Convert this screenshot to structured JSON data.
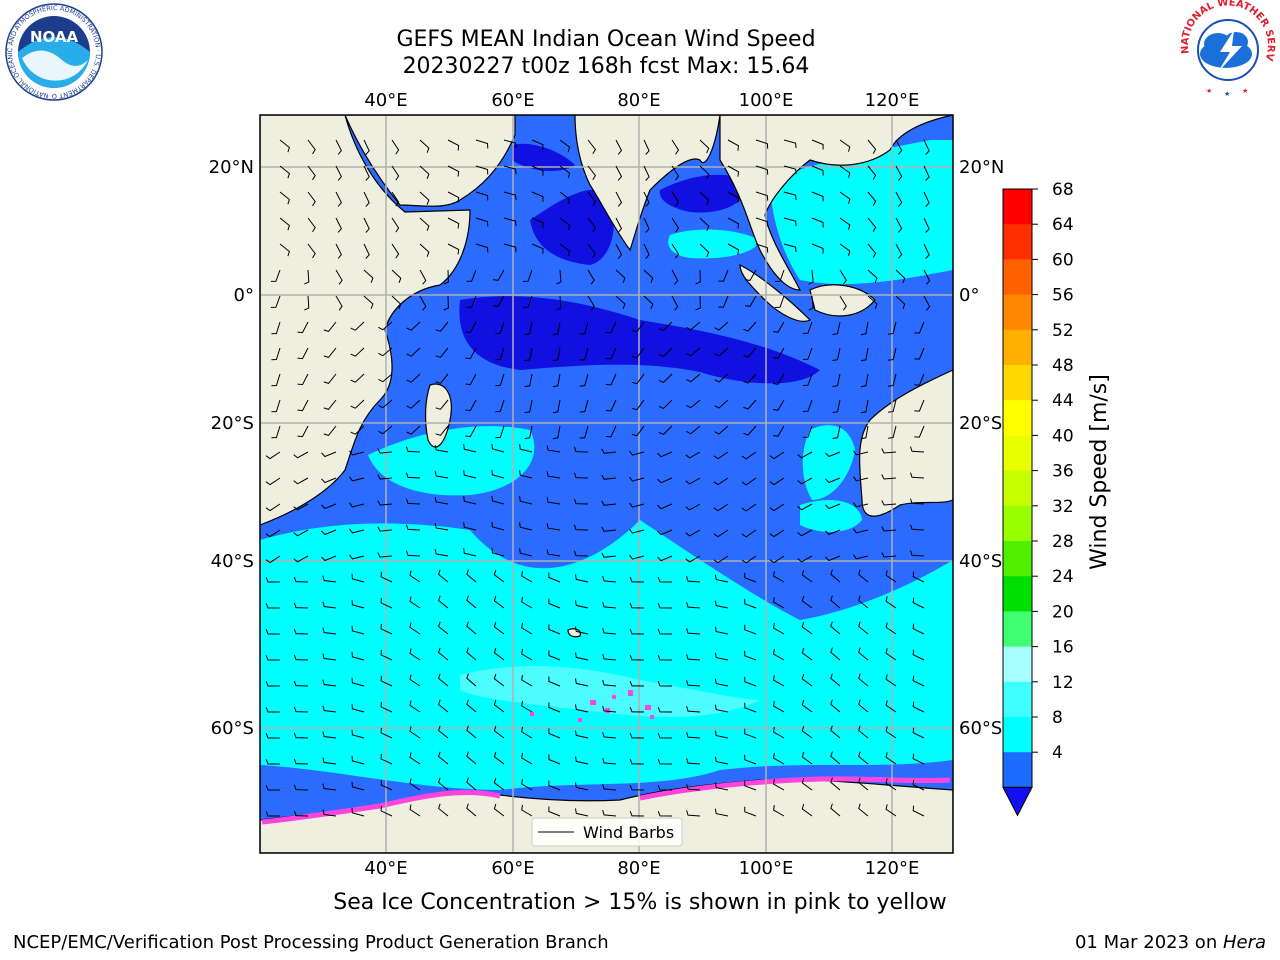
{
  "header": {
    "title_line1": "GEFS MEAN Indian Ocean Wind Speed",
    "title_line2": "20230227 t00z 168h fcst   Max: 15.64"
  },
  "logos": {
    "noaa_text": "NOAA",
    "noaa_ring": "NATIONAL OCEANIC AND ATMOSPHERIC ADMINISTRATION · U.S. DEPARTMENT OF COMMERCE ·",
    "nws_ring": "NATIONAL WEATHER SERVICE"
  },
  "map": {
    "lon_ticks": [
      "40°E",
      "60°E",
      "80°E",
      "100°E",
      "120°E"
    ],
    "lat_ticks": [
      "20°N",
      "0°",
      "20°S",
      "40°S",
      "60°S"
    ],
    "legend_label": "Wind Barbs",
    "colors": {
      "land": "#efefdf",
      "ws_4_8": "#2b6bff",
      "ws_lt4": "#1010e0",
      "ws_8_12": "#00ffff",
      "ws_12_16": "#4dfcff",
      "ice": "#ff44dd"
    }
  },
  "colorbar": {
    "label": "Wind Speed [m/s]",
    "ticks": [
      "68",
      "64",
      "60",
      "56",
      "52",
      "48",
      "44",
      "40",
      "36",
      "32",
      "28",
      "24",
      "20",
      "16",
      "12",
      "8",
      "4"
    ],
    "colors": [
      "#ff0000",
      "#ff3000",
      "#ff6000",
      "#ff8800",
      "#ffb000",
      "#ffd800",
      "#ffff00",
      "#e8ff00",
      "#c8ff00",
      "#98ff00",
      "#50f000",
      "#00e000",
      "#40ff70",
      "#a8ffff",
      "#40ffff",
      "#00ffff",
      "#1c6cff"
    ],
    "under_color": "#1010f0"
  },
  "footer": {
    "sea_ice_note": "Sea Ice Concentration > 15% is shown in pink to yellow",
    "left": "NCEP/EMC/Verification Post Processing Product Generation Branch",
    "right_prefix": "01 Mar 2023 on ",
    "right_machine": "Hera"
  }
}
